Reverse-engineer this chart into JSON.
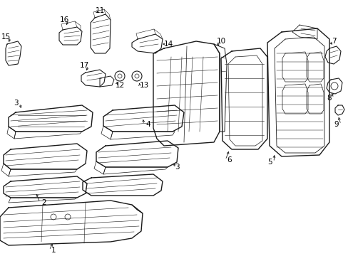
{
  "bg_color": "#ffffff",
  "fig_width": 4.89,
  "fig_height": 3.6,
  "dpi": 100,
  "line_color": "#1a1a1a",
  "text_color": "#000000",
  "font_size": 7.5
}
